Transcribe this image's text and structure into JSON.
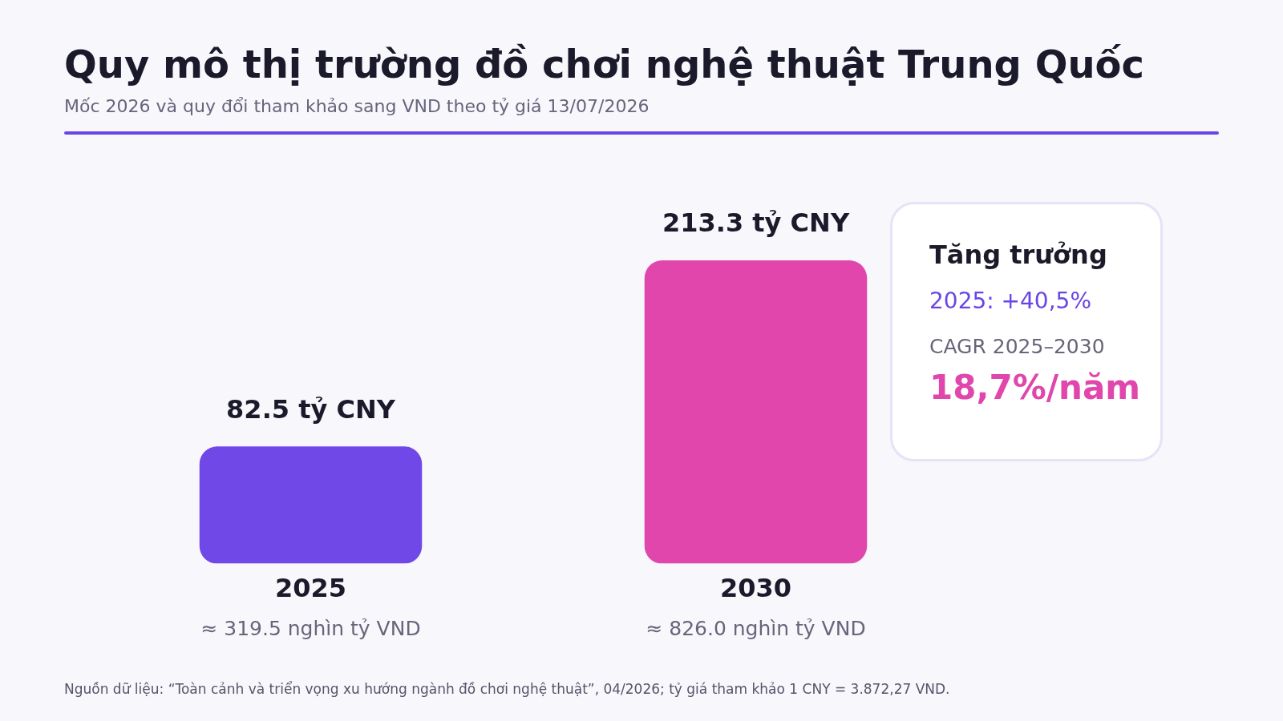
{
  "chart_data": {
    "type": "bar",
    "title": "Quy mô thị trường đồ chơi nghệ thuật Trung Quốc",
    "subtitle": "Mốc 2026 và quy đổi tham khảo sang VND theo tỷ giá 13/07/2026",
    "categories": [
      "2025",
      "2030"
    ],
    "values": [
      82.5,
      213.3
    ],
    "colors": [
      "#7048e8",
      "#e046ab"
    ],
    "value_labels": [
      "82.5 tỷ CNY",
      "213.3 tỷ CNY"
    ],
    "tick_labels": "x",
    "grid": false,
    "legend": false,
    "annotations": [
      "≈ 319.5 nghìn tỷ VND",
      "≈ 826.0 nghìn tỷ VND",
      "Tăng trưởng",
      "2025: +40,5%",
      "CAGR 2025–2030",
      "18,7%/năm",
      "Nguồn dữ liệu: “Toàn cảnh và triển vọng xu hướng ngành đồ chơi nghệ thuật”, 04/2026; tỷ giá tham khảo 1 CNY = 3.872,27 VND."
    ]
  }
}
